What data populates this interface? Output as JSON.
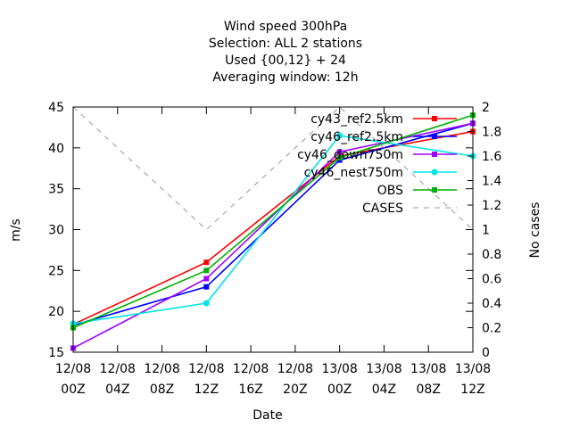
{
  "chart_data": {
    "type": "line",
    "title_lines": [
      "Wind speed 300hPa",
      "Selection: ALL      2 stations",
      "Used {00,12} + 24",
      "Averaging window: 12h"
    ],
    "xlabel": "Date",
    "ylabel": "m/s",
    "y2label": "No cases",
    "x_ticks": [
      {
        "line1": "12/08",
        "line2": "00Z"
      },
      {
        "line1": "12/08",
        "line2": "04Z"
      },
      {
        "line1": "12/08",
        "line2": "08Z"
      },
      {
        "line1": "12/08",
        "line2": "12Z"
      },
      {
        "line1": "12/08",
        "line2": "16Z"
      },
      {
        "line1": "12/08",
        "line2": "20Z"
      },
      {
        "line1": "13/08",
        "line2": "00Z"
      },
      {
        "line1": "13/08",
        "line2": "04Z"
      },
      {
        "line1": "13/08",
        "line2": "08Z"
      },
      {
        "line1": "13/08",
        "line2": "12Z"
      }
    ],
    "x_tick_hours": [
      0,
      4,
      8,
      12,
      16,
      20,
      24,
      28,
      32,
      36
    ],
    "xlim_hours": [
      0,
      36
    ],
    "ylim": [
      15,
      45
    ],
    "y_ticks": [
      "15",
      "20",
      "25",
      "30",
      "35",
      "40",
      "45"
    ],
    "y2lim": [
      0,
      2
    ],
    "y2_ticks": [
      "0",
      "0.2",
      "0.4",
      "0.6",
      "0.8",
      "1",
      "1.2",
      "1.4",
      "1.6",
      "1.8",
      "2"
    ],
    "grid": false,
    "legend_position": "top-right",
    "series": [
      {
        "name": "cy43_ref2.5km",
        "color": "#ff0000",
        "marker": "square",
        "x_hours": [
          0,
          12,
          24,
          36
        ],
        "values": [
          18.4,
          26.0,
          39.0,
          42.0
        ]
      },
      {
        "name": "cy46_ref2.5km",
        "color": "#0000ff",
        "marker": "square",
        "x_hours": [
          0,
          12,
          24,
          36
        ],
        "values": [
          18.3,
          23.0,
          38.5,
          43.0
        ]
      },
      {
        "name": "cy46_down750m",
        "color": "#a000ff",
        "marker": "square",
        "x_hours": [
          0,
          12,
          24,
          36
        ],
        "values": [
          15.5,
          24.0,
          39.5,
          43.0
        ]
      },
      {
        "name": "cy46_nest750m",
        "color": "#00e5e5",
        "marker": "circle",
        "x_hours": [
          0,
          12,
          24,
          36
        ],
        "values": [
          18.5,
          21.0,
          41.5,
          39.0
        ]
      },
      {
        "name": "OBS",
        "color": "#00b000",
        "marker": "square",
        "x_hours": [
          0,
          12,
          24,
          36
        ],
        "values": [
          18.0,
          25.0,
          38.8,
          44.0
        ]
      },
      {
        "name": "CASES",
        "color": "#999999",
        "dashed": true,
        "axis": "y2",
        "x_hours": [
          0,
          12,
          24,
          36
        ],
        "values": [
          2,
          1,
          2,
          1
        ]
      }
    ]
  }
}
